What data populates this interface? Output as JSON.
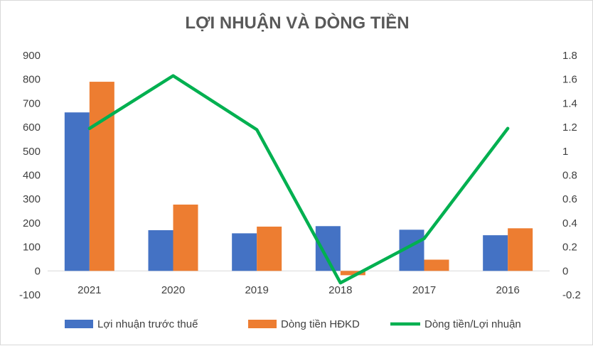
{
  "chart_data": {
    "type": "bar",
    "title": "LỢI NHUẬN VÀ DÒNG TIỀN",
    "categories": [
      "2021",
      "2020",
      "2019",
      "2018",
      "2017",
      "2016"
    ],
    "series": [
      {
        "name": "Lợi nhuận trước thuế",
        "type": "bar",
        "axis": "left",
        "color": "#4472c4",
        "values": [
          662,
          170,
          157,
          187,
          172,
          149
        ]
      },
      {
        "name": "Dòng tiền HĐKD",
        "type": "bar",
        "axis": "left",
        "color": "#ed7d31",
        "values": [
          790,
          277,
          185,
          -18,
          47,
          178
        ]
      },
      {
        "name": "Dòng tiền/Lợi nhuận",
        "type": "line",
        "axis": "right",
        "color": "#00b050",
        "values": [
          1.19,
          1.63,
          1.18,
          -0.1,
          0.27,
          1.19
        ]
      }
    ],
    "ylim": [
      -100,
      900
    ],
    "yticks": [
      "900",
      "800",
      "700",
      "600",
      "500",
      "400",
      "300",
      "200",
      "100",
      "0",
      "-100"
    ],
    "y2lim": [
      -0.2,
      1.8
    ],
    "y2ticks": [
      "1.8",
      "1.6",
      "1.4",
      "1.2",
      "1",
      "0.8",
      "0.6",
      "0.4",
      "0.2",
      "0",
      "-0.2"
    ],
    "xlabel": "",
    "ylabel": "",
    "legend": "bottom",
    "grid": false
  }
}
